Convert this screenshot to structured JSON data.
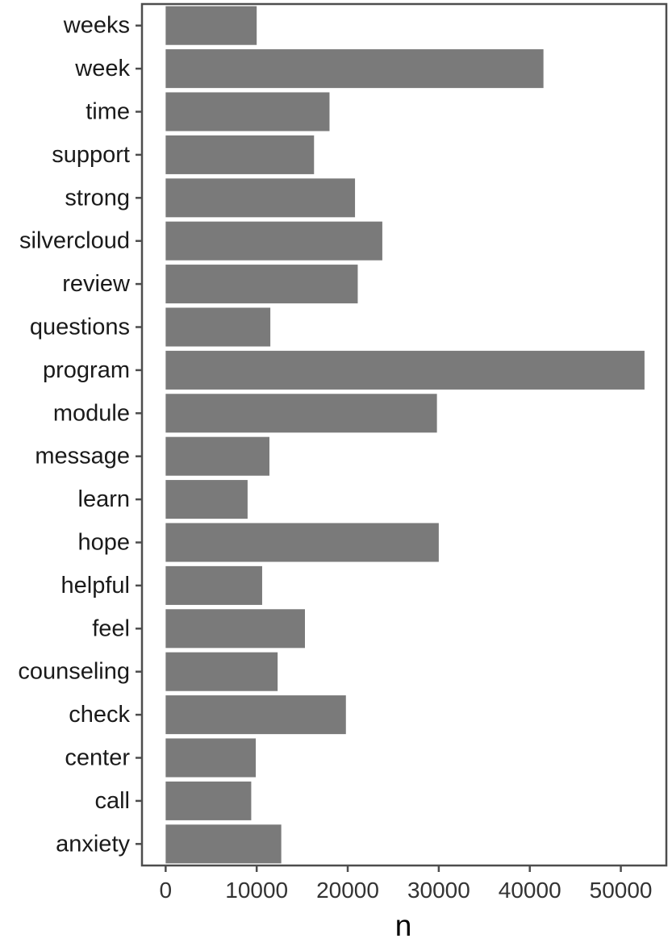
{
  "chart_data": {
    "type": "bar",
    "orientation": "horizontal",
    "categories": [
      "weeks",
      "week",
      "time",
      "support",
      "strong",
      "silvercloud",
      "review",
      "questions",
      "program",
      "module",
      "message",
      "learn",
      "hope",
      "helpful",
      "feel",
      "counseling",
      "check",
      "center",
      "call",
      "anxiety"
    ],
    "values": [
      10000,
      41500,
      18000,
      16300,
      20800,
      23800,
      21100,
      11500,
      52600,
      29800,
      11400,
      9000,
      30000,
      10600,
      15300,
      12300,
      19800,
      9900,
      9400,
      12700
    ],
    "title": "",
    "xlabel": "n",
    "ylabel": "",
    "xlim": [
      -2600,
      55000
    ],
    "xticks": [
      0,
      10000,
      20000,
      30000,
      40000,
      50000
    ],
    "xtick_labels": [
      "0",
      "10000",
      "20000",
      "30000",
      "40000",
      "50000"
    ],
    "grid": false,
    "legend": "none",
    "bar_color": "#7a7a7a",
    "axis_color": "#4d4d4d"
  }
}
